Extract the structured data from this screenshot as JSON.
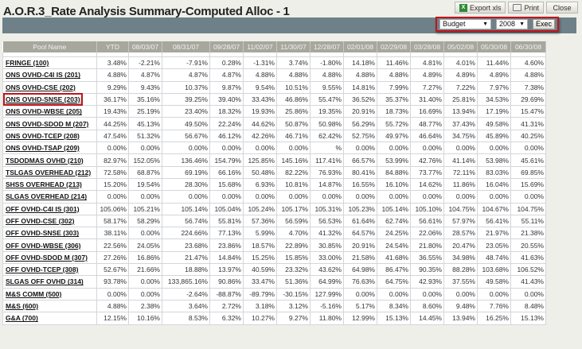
{
  "title": "A.O.R.3_Rate Analysis Summary-Computed Alloc - 1",
  "toolbar": {
    "export_label": "Export xls",
    "print_label": "Print",
    "close_label": "Close"
  },
  "filters": {
    "type_value": "Budget",
    "year_value": "2008",
    "exec_label": "Exec",
    "highlight_color": "#c0151a"
  },
  "table": {
    "headers": [
      "Pool Name",
      "YTD",
      "08/03/07",
      "08/31/07",
      "09/28/07",
      "11/02/07",
      "11/30/07",
      "12/28/07",
      "02/01/08",
      "02/29/08",
      "03/28/08",
      "05/02/08",
      "05/30/08",
      "06/30/08"
    ],
    "highlighted_row": "ONS OVHD-SNSE (203)",
    "rows": [
      [
        "FRINGE (100)",
        "3.48%",
        "-2.21%",
        "-7.91%",
        "0.28%",
        "-1.31%",
        "3.74%",
        "-1.80%",
        "14.18%",
        "11.46%",
        "4.81%",
        "4.01%",
        "11.44%",
        "4.60%"
      ],
      [
        "ONS OVHD-C4I IS (201)",
        "4.88%",
        "4.87%",
        "4.87%",
        "4.87%",
        "4.88%",
        "4.88%",
        "4.88%",
        "4.88%",
        "4.88%",
        "4.89%",
        "4.89%",
        "4.89%",
        "4.88%"
      ],
      [
        "ONS OVHD-CSE (202)",
        "9.29%",
        "9.43%",
        "10.37%",
        "9.87%",
        "9.54%",
        "10.51%",
        "9.55%",
        "14.81%",
        "7.99%",
        "7.27%",
        "7.22%",
        "7.97%",
        "7.38%"
      ],
      [
        "ONS OVHD-SNSE (203)",
        "36.17%",
        "35.16%",
        "39.25%",
        "39.40%",
        "33.43%",
        "46.86%",
        "55.47%",
        "36.52%",
        "35.37%",
        "31.40%",
        "25.81%",
        "34.53%",
        "29.69%"
      ],
      [
        "ONS OVHD-WBSE (205)",
        "19.43%",
        "25.19%",
        "23.40%",
        "18.32%",
        "19.93%",
        "25.86%",
        "19.35%",
        "20.91%",
        "18.73%",
        "16.69%",
        "13.94%",
        "17.19%",
        "15.47%"
      ],
      [
        "ONS OVHD-SDOD M (207)",
        "44.25%",
        "45.13%",
        "49.50%",
        "22.24%",
        "44.62%",
        "50.87%",
        "50.98%",
        "56.29%",
        "55.72%",
        "48.77%",
        "37.43%",
        "49.58%",
        "41.31%"
      ],
      [
        "ONS OVHD-TCEP (208)",
        "47.54%",
        "51.32%",
        "56.67%",
        "46.12%",
        "42.26%",
        "46.71%",
        "62.42%",
        "52.75%",
        "49.97%",
        "46.64%",
        "34.75%",
        "45.89%",
        "40.25%"
      ],
      [
        "ONS OVHD-TSAP (209)",
        "0.00%",
        "0.00%",
        "0.00%",
        "0.00%",
        "0.00%",
        "0.00%",
        "%",
        "0.00%",
        "0.00%",
        "0.00%",
        "0.00%",
        "0.00%",
        "0.00%"
      ],
      [
        "TSDODMAS OVHD (210)",
        "82.97%",
        "152.05%",
        "136.46%",
        "154.79%",
        "125.85%",
        "145.16%",
        "117.41%",
        "66.57%",
        "53.99%",
        "42.76%",
        "41.14%",
        "53.98%",
        "45.61%"
      ],
      [
        "TSLGAS OVERHEAD (212)",
        "72.58%",
        "68.87%",
        "69.19%",
        "66.16%",
        "50.48%",
        "82.22%",
        "76.93%",
        "80.41%",
        "84.88%",
        "73.77%",
        "72.11%",
        "83.03%",
        "69.85%"
      ],
      [
        "SHSS OVERHEAD (213)",
        "15.20%",
        "19.54%",
        "28.30%",
        "15.68%",
        "6.93%",
        "10.81%",
        "14.87%",
        "16.55%",
        "16.10%",
        "14.62%",
        "11.86%",
        "16.04%",
        "15.69%"
      ],
      [
        "SLGAS OVERHEAD (214)",
        "0.00%",
        "0.00%",
        "0.00%",
        "0.00%",
        "0.00%",
        "0.00%",
        "0.00%",
        "0.00%",
        "0.00%",
        "0.00%",
        "0.00%",
        "0.00%",
        "0.00%"
      ],
      [
        "OFF OVHD-C4I IS (301)",
        "105.06%",
        "105.21%",
        "105.14%",
        "105.04%",
        "105.24%",
        "105.17%",
        "105.31%",
        "105.23%",
        "105.14%",
        "105.10%",
        "104.75%",
        "104.67%",
        "104.75%"
      ],
      [
        "OFF OVHD-CSE (302)",
        "58.17%",
        "58.29%",
        "56.74%",
        "55.81%",
        "57.36%",
        "56.59%",
        "56.53%",
        "61.64%",
        "62.74%",
        "56.61%",
        "57.97%",
        "56.41%",
        "55.11%"
      ],
      [
        "OFF OVHD-SNSE (303)",
        "38.11%",
        "0.00%",
        "224.66%",
        "77.13%",
        "5.99%",
        "4.70%",
        "41.32%",
        "64.57%",
        "24.25%",
        "22.06%",
        "28.57%",
        "21.97%",
        "21.38%"
      ],
      [
        "OFF OVHD-WBSE (306)",
        "22.56%",
        "24.05%",
        "23.68%",
        "23.86%",
        "18.57%",
        "22.89%",
        "30.85%",
        "20.91%",
        "24.54%",
        "21.80%",
        "20.47%",
        "23.05%",
        "20.55%"
      ],
      [
        "OFF OVHD-SDOD M (307)",
        "27.26%",
        "16.86%",
        "21.47%",
        "14.84%",
        "15.25%",
        "15.85%",
        "33.00%",
        "21.58%",
        "41.68%",
        "36.55%",
        "34.98%",
        "48.74%",
        "41.63%"
      ],
      [
        "OFF OVHD-TCEP (308)",
        "52.67%",
        "21.66%",
        "18.88%",
        "13.97%",
        "40.59%",
        "23.32%",
        "43.62%",
        "64.98%",
        "86.47%",
        "90.35%",
        "88.28%",
        "103.68%",
        "106.52%"
      ],
      [
        "SLGAS OFF OVHD (314)",
        "93.78%",
        "0.00%",
        "133,865.16%",
        "90.86%",
        "33.47%",
        "51.36%",
        "64.99%",
        "76.63%",
        "64.75%",
        "42.93%",
        "37.55%",
        "49.58%",
        "41.43%"
      ],
      [
        "M&S COMM (500)",
        "0.00%",
        "0.00%",
        "-2.64%",
        "-88.87%",
        "-89.79%",
        "-30.15%",
        "127.99%",
        "0.00%",
        "0.00%",
        "0.00%",
        "0.00%",
        "0.00%",
        "0.00%"
      ],
      [
        "M&S (600)",
        "4.88%",
        "2.38%",
        "3.64%",
        "2.72%",
        "3.18%",
        "3.12%",
        "-5.16%",
        "5.17%",
        "8.34%",
        "8.60%",
        "9.48%",
        "7.76%",
        "8.48%"
      ],
      [
        "G&A (700)",
        "12.15%",
        "10.16%",
        "8.53%",
        "6.32%",
        "10.27%",
        "9.27%",
        "11.80%",
        "12.99%",
        "15.13%",
        "14.45%",
        "13.94%",
        "16.25%",
        "15.13%"
      ]
    ]
  }
}
